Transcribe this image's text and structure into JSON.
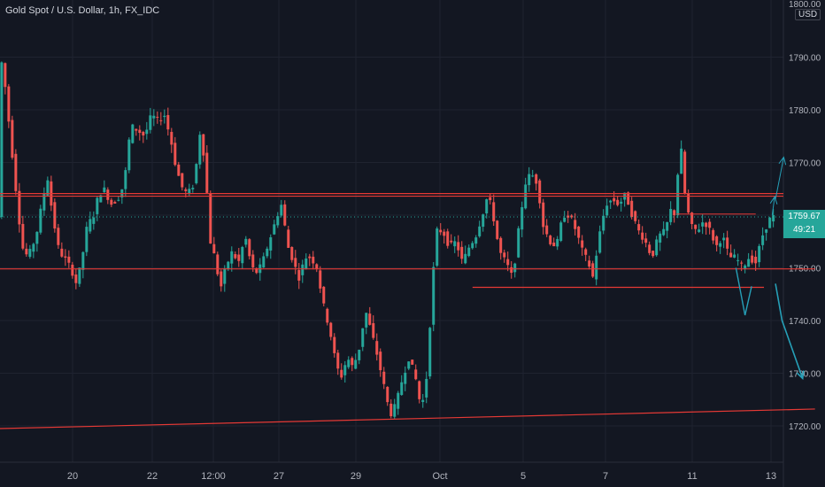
{
  "symbol_title": "Gold Spot / U.S. Dollar, 1h, FX_IDC",
  "currency_badge": "USD",
  "price_tag": {
    "price": "1759.67",
    "countdown": "49:21"
  },
  "colors": {
    "background": "#131722",
    "up": "#26a69a",
    "down": "#ef5350",
    "wick_up": "#26a69a",
    "wick_down": "#ef5350",
    "lines": "#e53935",
    "arrows": "#26a0b8",
    "grid": "#1f2330",
    "text": "#b2b5be"
  },
  "chart_data": {
    "type": "candlestick",
    "title": "Gold Spot / U.S. Dollar, 1h, FX_IDC",
    "ylim": [
      1718,
      1800
    ],
    "y_ticks": [
      1720,
      1730,
      1740,
      1750,
      1760,
      1770,
      1780,
      1790
    ],
    "y_tick_labels": [
      "1720.00",
      "1730.00",
      "1740.00",
      "1750.00",
      "1760.00",
      "1770.00",
      "1780.00",
      "1790.00"
    ],
    "y_top_label": "1800.00",
    "x_ticks": [
      "20",
      "22",
      "12:00",
      "27",
      "29",
      "Oct",
      "5",
      "7",
      "11",
      "13"
    ],
    "current_price": 1759.67,
    "path": [
      [
        0,
        1791
      ],
      [
        0.6,
        1788
      ],
      [
        1.4,
        1776
      ],
      [
        2.2,
        1764
      ],
      [
        2.9,
        1754
      ],
      [
        3.6,
        1752
      ],
      [
        4.6,
        1756
      ],
      [
        5.4,
        1763
      ],
      [
        6.0,
        1767
      ],
      [
        6.6,
        1760
      ],
      [
        7.4,
        1753
      ],
      [
        8.0,
        1752
      ],
      [
        8.8,
        1750
      ],
      [
        9.5,
        1747
      ],
      [
        10.1,
        1751
      ],
      [
        10.8,
        1758
      ],
      [
        11.6,
        1760
      ],
      [
        12.2,
        1764
      ],
      [
        13.0,
        1765
      ],
      [
        13.6,
        1762
      ],
      [
        14.5,
        1763
      ],
      [
        15.3,
        1766
      ],
      [
        16.1,
        1777
      ],
      [
        17.0,
        1776
      ],
      [
        17.8,
        1775
      ],
      [
        18.6,
        1779
      ],
      [
        19.4,
        1778
      ],
      [
        20.2,
        1779
      ],
      [
        21.0,
        1774
      ],
      [
        21.6,
        1769
      ],
      [
        22.4,
        1765
      ],
      [
        23.0,
        1764
      ],
      [
        23.8,
        1766
      ],
      [
        24.6,
        1777
      ],
      [
        25.3,
        1766
      ],
      [
        25.6,
        1756
      ],
      [
        26.3,
        1752
      ],
      [
        27.0,
        1746
      ],
      [
        27.6,
        1750
      ],
      [
        28.4,
        1753
      ],
      [
        29.2,
        1751
      ],
      [
        30.0,
        1756
      ],
      [
        30.8,
        1750
      ],
      [
        31.5,
        1749
      ],
      [
        32.3,
        1752
      ],
      [
        33.1,
        1756
      ],
      [
        33.9,
        1760
      ],
      [
        34.4,
        1762
      ],
      [
        35.2,
        1754
      ],
      [
        35.9,
        1751
      ],
      [
        36.5,
        1748
      ],
      [
        37.3,
        1752
      ],
      [
        38.0,
        1752
      ],
      [
        38.7,
        1750
      ],
      [
        39.5,
        1743
      ],
      [
        40.3,
        1738
      ],
      [
        41.0,
        1732
      ],
      [
        41.6,
        1729
      ],
      [
        42.4,
        1733
      ],
      [
        43.1,
        1731
      ],
      [
        43.9,
        1735
      ],
      [
        44.6,
        1742
      ],
      [
        45.3,
        1738
      ],
      [
        46.1,
        1733
      ],
      [
        46.8,
        1728
      ],
      [
        47.6,
        1722
      ],
      [
        48.3,
        1724
      ],
      [
        49.1,
        1729
      ],
      [
        49.9,
        1733
      ],
      [
        50.7,
        1729
      ],
      [
        51.4,
        1723
      ],
      [
        52.1,
        1730
      ],
      [
        52.7,
        1746
      ],
      [
        53.2,
        1757
      ],
      [
        54.0,
        1757
      ],
      [
        54.8,
        1754
      ],
      [
        55.6,
        1755
      ],
      [
        56.4,
        1751
      ],
      [
        57.2,
        1754
      ],
      [
        58.0,
        1756
      ],
      [
        58.8,
        1760
      ],
      [
        59.5,
        1764
      ],
      [
        60.1,
        1760
      ],
      [
        60.9,
        1753
      ],
      [
        61.7,
        1751
      ],
      [
        62.5,
        1748
      ],
      [
        63.2,
        1757
      ],
      [
        64.0,
        1766
      ],
      [
        64.7,
        1768
      ],
      [
        65.5,
        1766
      ],
      [
        66.2,
        1758
      ],
      [
        67.0,
        1755
      ],
      [
        67.8,
        1754
      ],
      [
        68.6,
        1760
      ],
      [
        69.4,
        1760
      ],
      [
        70.2,
        1757
      ],
      [
        71.0,
        1753
      ],
      [
        71.7,
        1751
      ],
      [
        72.2,
        1748
      ],
      [
        73.0,
        1756
      ],
      [
        73.8,
        1762
      ],
      [
        74.6,
        1763
      ],
      [
        75.4,
        1762
      ],
      [
        76.2,
        1764
      ],
      [
        77.0,
        1760
      ],
      [
        77.8,
        1757
      ],
      [
        78.6,
        1755
      ],
      [
        79.4,
        1752
      ],
      [
        80.2,
        1756
      ],
      [
        81.0,
        1757
      ],
      [
        81.7,
        1761
      ],
      [
        82.3,
        1760
      ],
      [
        82.8,
        1776
      ],
      [
        83.3,
        1765
      ],
      [
        84.1,
        1758
      ],
      [
        84.9,
        1757
      ],
      [
        85.7,
        1759
      ],
      [
        86.5,
        1757
      ],
      [
        87.2,
        1754
      ],
      [
        88.0,
        1756
      ],
      [
        88.8,
        1752
      ],
      [
        89.6,
        1752
      ],
      [
        90.4,
        1750
      ],
      [
        91.2,
        1752
      ],
      [
        92.0,
        1751
      ],
      [
        92.8,
        1756
      ],
      [
        93.6,
        1759
      ],
      [
        94.0,
        1759.67
      ]
    ],
    "resistance_band": [
      1763.6,
      1764.1
    ],
    "support_levels": [
      1749.8,
      1746.3
    ],
    "trendline": {
      "from": [
        0,
        1719.5
      ],
      "to": [
        99,
        1723.2
      ]
    },
    "projection_up": [
      [
        94.2,
        1763
      ],
      [
        95.2,
        1771
      ]
    ],
    "projection_down": [
      [
        94.2,
        1747
      ],
      [
        95.0,
        1740
      ],
      [
        97.5,
        1729
      ]
    ]
  }
}
